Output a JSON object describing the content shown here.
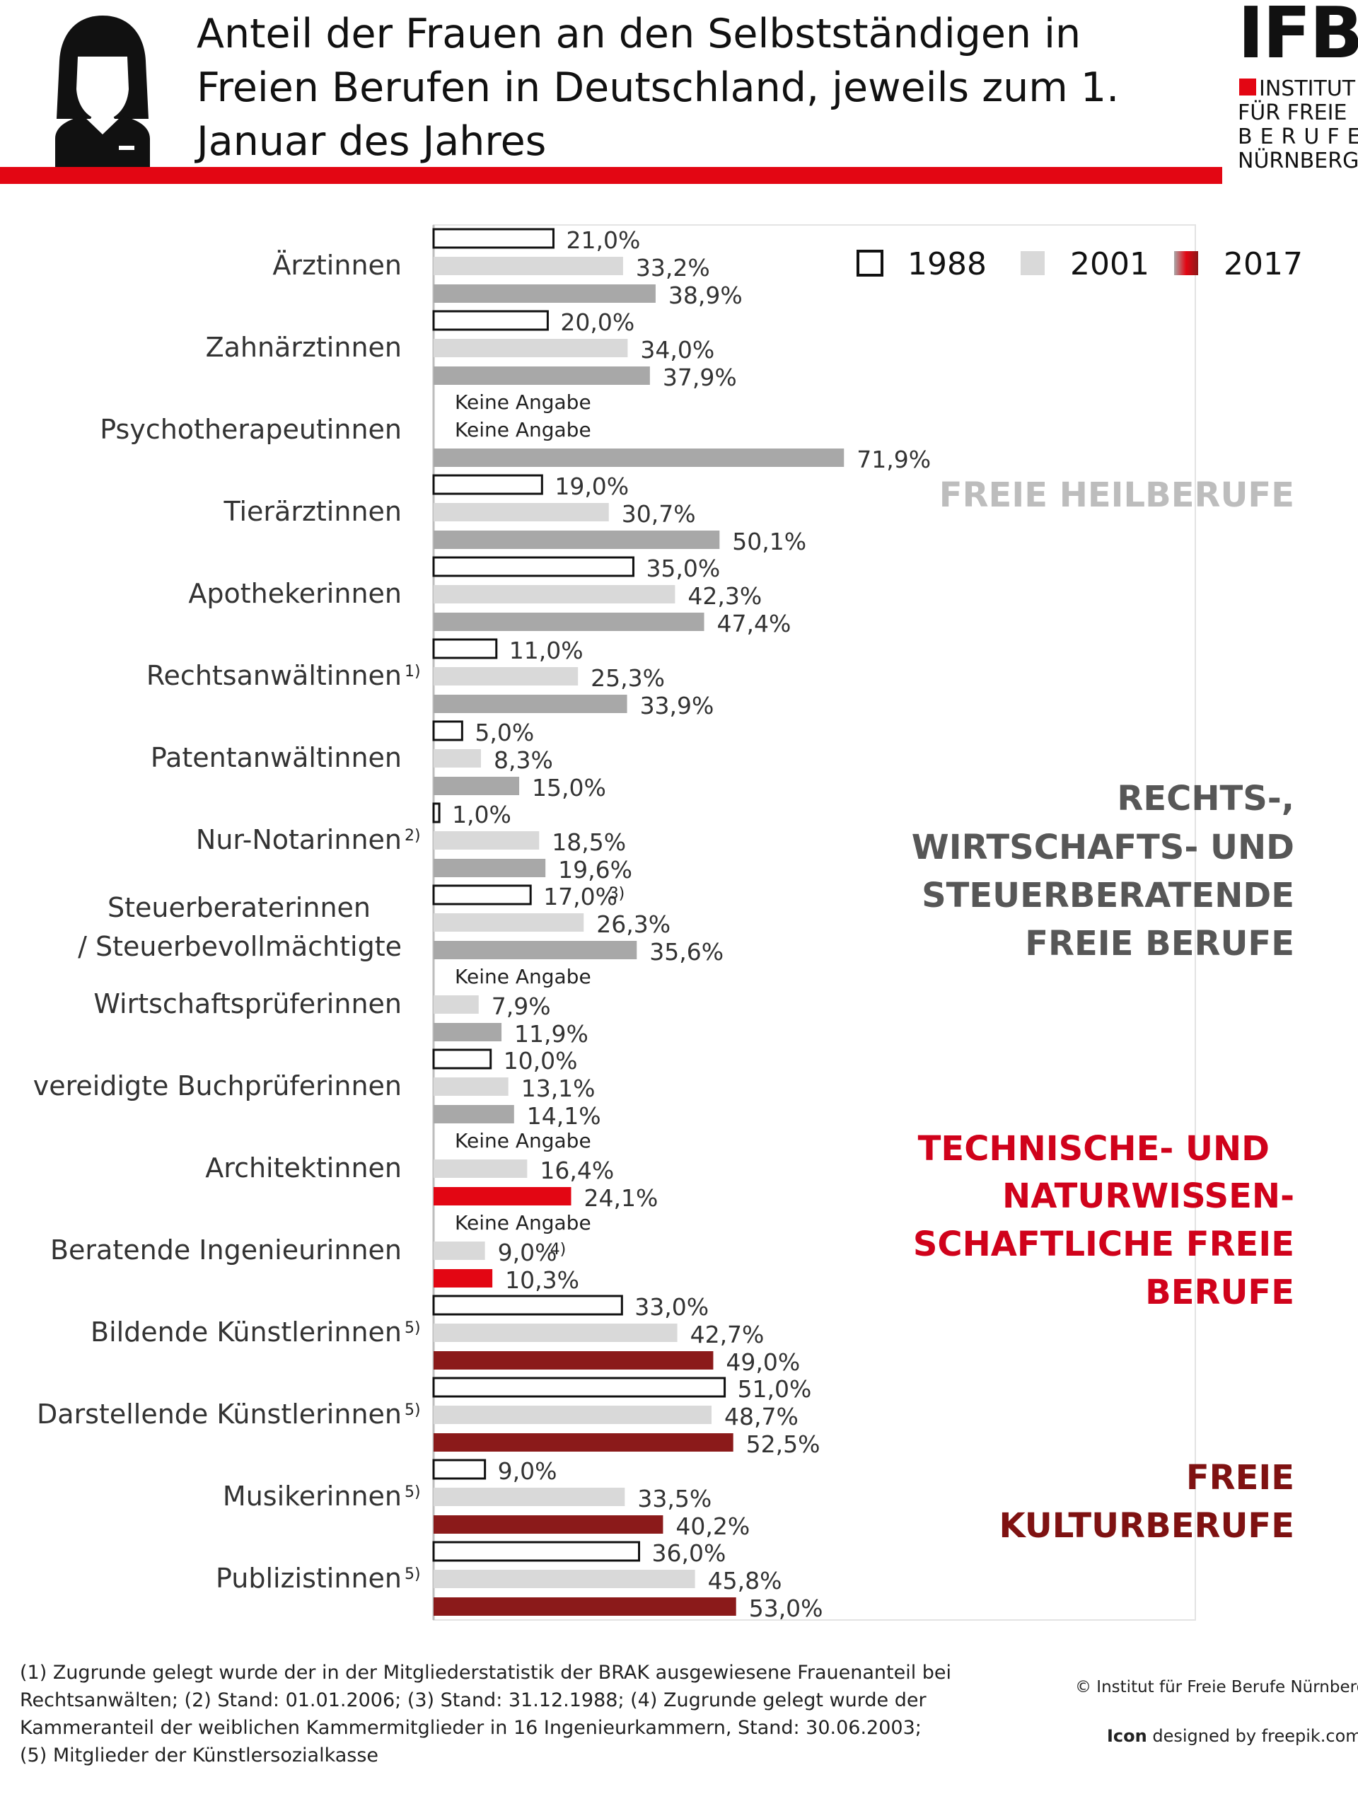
{
  "header": {
    "title": "Anteil der Frauen an den Selbstständigen in Freien Berufen in Deutschland, jeweils zum 1. Januar des Jahres",
    "logo_big": "IFB",
    "logo_lines": [
      "INSTITUT",
      "FÜR FREIE",
      "BERUFE",
      "NÜRNBERG"
    ]
  },
  "colors": {
    "accent_red": "#e30613",
    "s1988_fill": "#ffffff",
    "s1988_stroke": "#111111",
    "s2001": "#d9d9d9",
    "s2017_heil": "#a8a8a8",
    "s2017_tech": "#e30613",
    "s2017_kultur": "#8b1a1a",
    "group_heil": "#bdbdbd",
    "group_recht": "#575757",
    "group_tech": "#d0021b",
    "group_kultur": "#7f1212"
  },
  "chart_data": {
    "type": "bar",
    "orientation": "horizontal",
    "title": "Anteil der Frauen an den Selbstständigen in Freien Berufen in Deutschland, jeweils zum 1. Januar des Jahres",
    "xlim": [
      0,
      100
    ],
    "legend": [
      "1988",
      "2001",
      "2017"
    ],
    "legend_position": "top-right",
    "categories": [
      "Ärztinnen",
      "Zahnärztinnen",
      "Psychotherapeutinnen",
      "Tierärztinnen",
      "Apothekerinnen",
      "Rechtsanwältinnen",
      "Patentanwältinnen",
      "Nur-Notarinnen",
      "Steuerberaterinnen / Steuerbevollmächtigte",
      "Wirtschaftsprüferinnen",
      "vereidigte Buchprüferinnen",
      "Architektinnen",
      "Beratende Ingenieurinnen",
      "Bildende Künstlerinnen",
      "Darstellende Künstlerinnen",
      "Musikerinnen",
      "Publizistinnen"
    ],
    "category_lines": [
      [
        "Ärztinnen"
      ],
      [
        "Zahnärztinnen"
      ],
      [
        "Psychotherapeutinnen"
      ],
      [
        "Tierärztinnen"
      ],
      [
        "Apothekerinnen"
      ],
      [
        "Rechtsanwältinnen"
      ],
      [
        "Patentanwältinnen"
      ],
      [
        "Nur-Notarinnen"
      ],
      [
        "Steuerberaterinnen",
        "/ Steuerbevollmächtigte"
      ],
      [
        "Wirtschaftsprüferinnen"
      ],
      [
        "vereidigte Buchprüferinnen"
      ],
      [
        "Architektinnen"
      ],
      [
        "Beratende Ingenieurinnen"
      ],
      [
        "Bildende Künstlerinnen"
      ],
      [
        "Darstellende Künstlerinnen"
      ],
      [
        "Musikerinnen"
      ],
      [
        "Publizistinnen"
      ]
    ],
    "category_notes": [
      "",
      "",
      "",
      "",
      "",
      "1)",
      "",
      "2)",
      "",
      "",
      "",
      "",
      "",
      "5)",
      "5)",
      "5)",
      "5)"
    ],
    "groups": [
      "heil",
      "heil",
      "heil",
      "heil",
      "heil",
      "recht",
      "recht",
      "recht",
      "recht",
      "recht",
      "recht",
      "tech",
      "tech",
      "kultur",
      "kultur",
      "kultur",
      "kultur"
    ],
    "series": [
      {
        "name": "1988",
        "values": [
          21.0,
          20.0,
          null,
          19.0,
          35.0,
          11.0,
          5.0,
          1.0,
          17.0,
          null,
          10.0,
          null,
          null,
          33.0,
          51.0,
          9.0,
          36.0
        ],
        "labels": [
          "21,0%",
          "20,0%",
          "Keine Angabe",
          "19,0%",
          "35,0%",
          "11,0%",
          "5,0%",
          "1,0%",
          "17,0%",
          "Keine Angabe",
          "10,0%",
          "Keine Angabe",
          "Keine Angabe",
          "33,0%",
          "51,0%",
          "9,0%",
          "36,0%"
        ],
        "notes": [
          "",
          "",
          "",
          "",
          "",
          "",
          "",
          "",
          "3)",
          "",
          "",
          "",
          "",
          "",
          "",
          "",
          ""
        ]
      },
      {
        "name": "2001",
        "values": [
          33.2,
          34.0,
          null,
          30.7,
          42.3,
          25.3,
          8.3,
          18.5,
          26.3,
          7.9,
          13.1,
          16.4,
          9.0,
          42.7,
          48.7,
          33.5,
          45.8
        ],
        "labels": [
          "33,2%",
          "34,0%",
          "Keine Angabe",
          "30,7%",
          "42,3%",
          "25,3%",
          "8,3%",
          "18,5%",
          "26,3%",
          "7,9%",
          "13,1%",
          "16,4%",
          "9,0%",
          "42,7%",
          "48,7%",
          "33,5%",
          "45,8%"
        ],
        "notes": [
          "",
          "",
          "",
          "",
          "",
          "",
          "",
          "",
          "",
          "",
          "",
          "",
          "4)",
          "",
          "",
          "",
          ""
        ]
      },
      {
        "name": "2017",
        "values": [
          38.9,
          37.9,
          71.9,
          50.1,
          47.4,
          33.9,
          15.0,
          19.6,
          35.6,
          11.9,
          14.1,
          24.1,
          10.3,
          49.0,
          52.5,
          40.2,
          53.0
        ],
        "labels": [
          "38,9%",
          "37,9%",
          "71,9%",
          "50,1%",
          "47,4%",
          "33,9%",
          "15,0%",
          "19,6%",
          "35,6%",
          "11,9%",
          "14,1%",
          "24,1%",
          "10,3%",
          "49,0%",
          "52,5%",
          "40,2%",
          "53,0%"
        ],
        "notes": [
          "",
          "",
          "",
          "",
          "",
          "",
          "",
          "",
          "",
          "",
          "",
          "",
          "",
          "",
          "",
          "",
          ""
        ]
      }
    ],
    "group_labels": [
      {
        "key": "heil",
        "lines": [
          "FREIE HEILBERUFE"
        ]
      },
      {
        "key": "recht",
        "lines": [
          "RECHTS-,",
          "WIRTSCHAFTS-  UND",
          "STEUERBERATENDE",
          "FREIE BERUFE"
        ]
      },
      {
        "key": "tech",
        "lines": [
          "TECHNISCHE- UND",
          "NATURWISSEN-",
          "SCHAFTLICHE FREIE",
          "BERUFE"
        ]
      },
      {
        "key": "kultur",
        "lines": [
          "FREIE",
          "KULTURBERUFE"
        ]
      }
    ]
  },
  "footer": {
    "footnotes": [
      "(1) Zugrunde gelegt wurde der in der Mitgliederstatistik der BRAK ausgewiesene Frauenanteil bei Rechtsanwälten; (2) Stand: 01.01.2006; (3) Stand: 31.12.1988; (4) Zugrunde gelegt wurde der Kammeranteil der weiblichen  Kammermitglieder  in 16 Ingenieurkammern, Stand: 30.06.2003;",
      "(5) Mitglieder der Künstlersozialkasse"
    ],
    "copyright": "© Institut für Freie Berufe Nürnberg",
    "icon_credit_bold": "Icon",
    "icon_credit_rest": " designed by freepik.com"
  }
}
